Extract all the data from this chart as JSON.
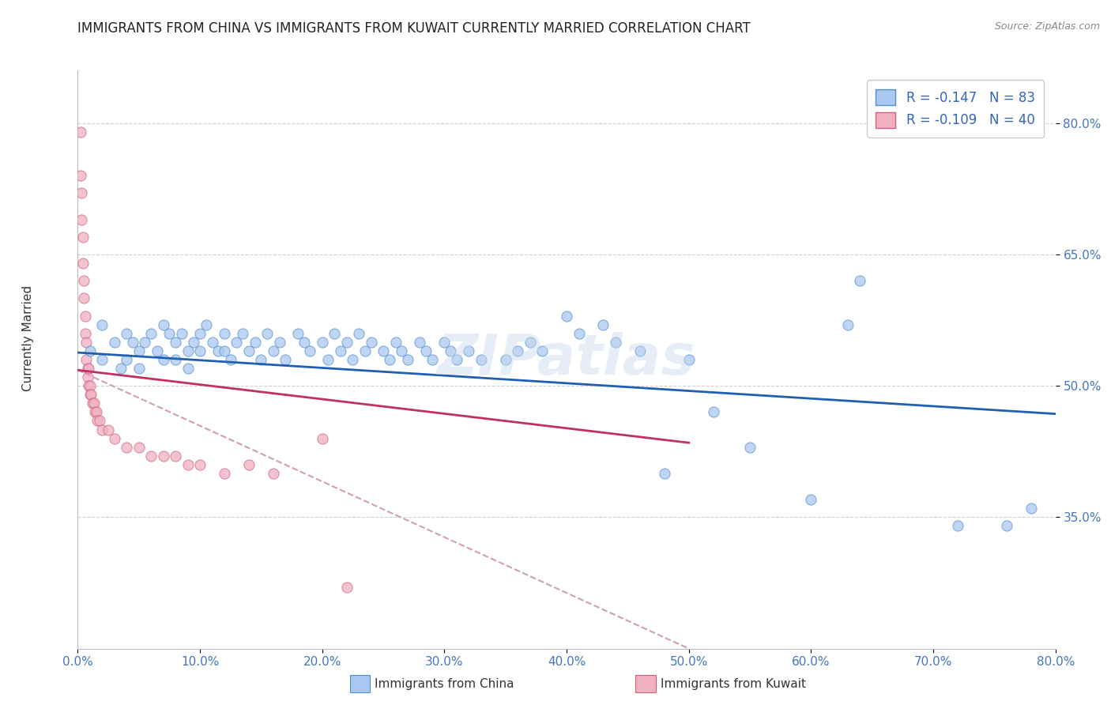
{
  "title": "IMMIGRANTS FROM CHINA VS IMMIGRANTS FROM KUWAIT CURRENTLY MARRIED CORRELATION CHART",
  "source": "Source: ZipAtlas.com",
  "ylabel": "Currently Married",
  "legend_label_china": "Immigrants from China",
  "legend_label_kuwait": "Immigrants from Kuwait",
  "legend_r_china": "R = -0.147",
  "legend_n_china": "N = 83",
  "legend_r_kuwait": "R = -0.109",
  "legend_n_kuwait": "N = 40",
  "watermark": "ZIPatlas",
  "color_china_fill": "#aac8f0",
  "color_china_edge": "#5090d0",
  "color_kuwait_fill": "#f0b0c0",
  "color_kuwait_edge": "#d06080",
  "color_china_line": "#2060b0",
  "color_kuwait_line": "#c03060",
  "color_dashed": "#d0a0b0",
  "xmin": 0.0,
  "xmax": 0.8,
  "ymin": 0.2,
  "ymax": 0.86,
  "china_trend_x": [
    0.0,
    0.8
  ],
  "china_trend_y": [
    0.538,
    0.468
  ],
  "kuwait_trend_x": [
    0.0,
    0.5
  ],
  "kuwait_trend_y": [
    0.518,
    0.435
  ],
  "dashed_trend_x": [
    0.0,
    0.5
  ],
  "dashed_trend_y": [
    0.518,
    0.2
  ],
  "china_scatter_x": [
    0.01,
    0.02,
    0.02,
    0.03,
    0.035,
    0.04,
    0.04,
    0.045,
    0.05,
    0.05,
    0.055,
    0.06,
    0.065,
    0.07,
    0.07,
    0.075,
    0.08,
    0.08,
    0.085,
    0.09,
    0.09,
    0.095,
    0.1,
    0.1,
    0.105,
    0.11,
    0.115,
    0.12,
    0.12,
    0.125,
    0.13,
    0.135,
    0.14,
    0.145,
    0.15,
    0.155,
    0.16,
    0.165,
    0.17,
    0.18,
    0.185,
    0.19,
    0.2,
    0.205,
    0.21,
    0.215,
    0.22,
    0.225,
    0.23,
    0.235,
    0.24,
    0.25,
    0.255,
    0.26,
    0.265,
    0.27,
    0.28,
    0.285,
    0.29,
    0.3,
    0.305,
    0.31,
    0.32,
    0.33,
    0.35,
    0.36,
    0.37,
    0.38,
    0.4,
    0.41,
    0.43,
    0.44,
    0.46,
    0.48,
    0.5,
    0.52,
    0.55,
    0.6,
    0.63,
    0.64,
    0.72,
    0.76,
    0.78
  ],
  "china_scatter_y": [
    0.54,
    0.57,
    0.53,
    0.55,
    0.52,
    0.56,
    0.53,
    0.55,
    0.54,
    0.52,
    0.55,
    0.56,
    0.54,
    0.57,
    0.53,
    0.56,
    0.55,
    0.53,
    0.56,
    0.54,
    0.52,
    0.55,
    0.56,
    0.54,
    0.57,
    0.55,
    0.54,
    0.56,
    0.54,
    0.53,
    0.55,
    0.56,
    0.54,
    0.55,
    0.53,
    0.56,
    0.54,
    0.55,
    0.53,
    0.56,
    0.55,
    0.54,
    0.55,
    0.53,
    0.56,
    0.54,
    0.55,
    0.53,
    0.56,
    0.54,
    0.55,
    0.54,
    0.53,
    0.55,
    0.54,
    0.53,
    0.55,
    0.54,
    0.53,
    0.55,
    0.54,
    0.53,
    0.54,
    0.53,
    0.53,
    0.54,
    0.55,
    0.54,
    0.58,
    0.56,
    0.57,
    0.55,
    0.54,
    0.4,
    0.53,
    0.47,
    0.43,
    0.37,
    0.57,
    0.62,
    0.34,
    0.34,
    0.36
  ],
  "kuwait_scatter_x": [
    0.002,
    0.002,
    0.003,
    0.003,
    0.004,
    0.004,
    0.005,
    0.005,
    0.006,
    0.006,
    0.007,
    0.007,
    0.008,
    0.008,
    0.009,
    0.009,
    0.01,
    0.01,
    0.011,
    0.012,
    0.013,
    0.014,
    0.015,
    0.016,
    0.018,
    0.02,
    0.025,
    0.03,
    0.04,
    0.05,
    0.06,
    0.07,
    0.08,
    0.09,
    0.1,
    0.12,
    0.14,
    0.16,
    0.2,
    0.22
  ],
  "kuwait_scatter_y": [
    0.79,
    0.74,
    0.72,
    0.69,
    0.67,
    0.64,
    0.62,
    0.6,
    0.58,
    0.56,
    0.55,
    0.53,
    0.52,
    0.51,
    0.52,
    0.5,
    0.5,
    0.49,
    0.49,
    0.48,
    0.48,
    0.47,
    0.47,
    0.46,
    0.46,
    0.45,
    0.45,
    0.44,
    0.43,
    0.43,
    0.42,
    0.42,
    0.42,
    0.41,
    0.41,
    0.4,
    0.41,
    0.4,
    0.44,
    0.27
  ]
}
